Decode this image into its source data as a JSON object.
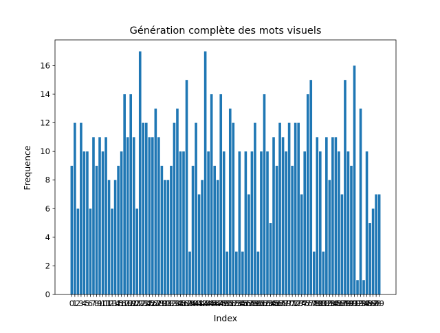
{
  "chart_data": {
    "type": "bar",
    "title": "Génération complète des mots visuels",
    "xlabel": "Index",
    "ylabel": "Frequence",
    "x": [
      0,
      1,
      2,
      3,
      4,
      5,
      6,
      7,
      8,
      9,
      10,
      11,
      12,
      13,
      14,
      15,
      16,
      17,
      18,
      19,
      20,
      21,
      22,
      23,
      24,
      25,
      26,
      27,
      28,
      29,
      30,
      31,
      32,
      33,
      34,
      35,
      36,
      37,
      38,
      39,
      40,
      41,
      42,
      43,
      44,
      45,
      46,
      47,
      48,
      49,
      50,
      51,
      52,
      53,
      54,
      55,
      56,
      57,
      58,
      59,
      60,
      61,
      62,
      63,
      64,
      65,
      66,
      67,
      68,
      69,
      70,
      71,
      72,
      73,
      74,
      75,
      76,
      77,
      78,
      79,
      80,
      81,
      82,
      83,
      84,
      85,
      86,
      87,
      88,
      89,
      90,
      91,
      92,
      93,
      94,
      95,
      96,
      97,
      98,
      99
    ],
    "values": [
      9,
      12,
      6,
      12,
      10,
      10,
      6,
      11,
      9,
      11,
      10,
      11,
      8,
      6,
      8,
      9,
      10,
      14,
      11,
      14,
      11,
      6,
      17,
      12,
      12,
      11,
      11,
      13,
      11,
      9,
      8,
      8,
      9,
      12,
      13,
      10,
      10,
      15,
      3,
      9,
      12,
      7,
      8,
      17,
      10,
      14,
      9,
      8,
      14,
      10,
      3,
      13,
      12,
      3,
      10,
      3,
      10,
      7,
      10,
      12,
      3,
      10,
      14,
      10,
      5,
      11,
      9,
      12,
      11,
      10,
      12,
      9,
      12,
      12,
      7,
      10,
      14,
      15,
      3,
      11,
      10,
      3,
      11,
      8,
      11,
      11,
      10,
      7,
      15,
      10,
      9,
      16,
      1,
      13,
      1,
      10,
      5,
      6,
      7,
      7
    ],
    "ylim": [
      0,
      17.8
    ],
    "yticks": [
      0,
      2,
      4,
      6,
      8,
      10,
      12,
      14,
      16
    ],
    "color": "#1f77b4",
    "grid": false
  }
}
